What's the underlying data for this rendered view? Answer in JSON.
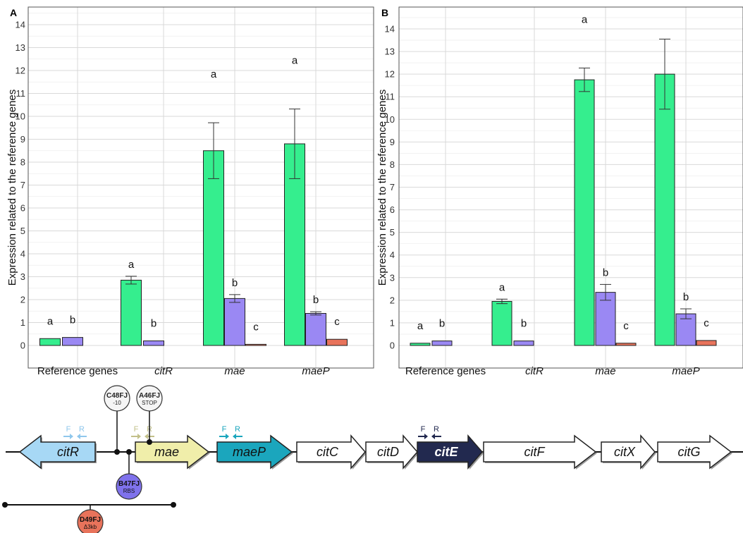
{
  "chart_data": [
    {
      "type": "bar",
      "panel_label": "A",
      "ylabel": "Expression related to the reference genes",
      "ylim": [
        -0.6,
        14.6
      ],
      "yticks": [
        0,
        1,
        2,
        3,
        4,
        5,
        6,
        7,
        8,
        9,
        10,
        11,
        12,
        13,
        14
      ],
      "grid": true,
      "categories": [
        "Reference genes",
        "citR",
        "mae",
        "maeP"
      ],
      "italic_categories": [
        false,
        true,
        true,
        true
      ],
      "groups": [
        {
          "category": "Reference genes",
          "bars": [
            {
              "value": 0.3,
              "err": null,
              "color": "#35ee8e",
              "letter": "a"
            },
            {
              "value": 0.35,
              "err": null,
              "color": "#9a88f3",
              "letter": "b"
            }
          ]
        },
        {
          "category": "citR",
          "bars": [
            {
              "value": 2.85,
              "err": 0.17,
              "color": "#35ee8e",
              "letter": "a"
            },
            {
              "value": 0.2,
              "err": null,
              "color": "#9a88f3",
              "letter": "b"
            }
          ]
        },
        {
          "category": "mae",
          "bars": [
            {
              "value": 8.5,
              "err": 1.22,
              "color": "#35ee8e",
              "letter": "a"
            },
            {
              "value": 2.05,
              "err": 0.17,
              "color": "#9a88f3",
              "letter": "b"
            },
            {
              "value": 0.05,
              "err": null,
              "color": "#e8735b",
              "letter": "c"
            }
          ]
        },
        {
          "category": "maeP",
          "bars": [
            {
              "value": 8.8,
              "err": 1.52,
              "color": "#35ee8e",
              "letter": "a"
            },
            {
              "value": 1.4,
              "err": 0.07,
              "color": "#9a88f3",
              "letter": "b"
            },
            {
              "value": 0.27,
              "err": null,
              "color": "#e8735b",
              "letter": "c"
            }
          ]
        }
      ]
    },
    {
      "type": "bar",
      "panel_label": "B",
      "ylabel": "Expression related to the reference genes",
      "ylim": [
        -0.6,
        14.6
      ],
      "yticks": [
        0,
        1,
        2,
        3,
        4,
        5,
        6,
        7,
        8,
        9,
        10,
        11,
        12,
        13,
        14
      ],
      "grid": true,
      "categories": [
        "Reference genes",
        "citR",
        "mae",
        "maeP"
      ],
      "italic_categories": [
        false,
        true,
        true,
        true
      ],
      "groups": [
        {
          "category": "Reference genes",
          "bars": [
            {
              "value": 0.1,
              "err": null,
              "color": "#35ee8e",
              "letter": "a"
            },
            {
              "value": 0.2,
              "err": null,
              "color": "#9a88f3",
              "letter": "b"
            }
          ]
        },
        {
          "category": "citR",
          "bars": [
            {
              "value": 1.95,
              "err": 0.1,
              "color": "#35ee8e",
              "letter": "a"
            },
            {
              "value": 0.2,
              "err": null,
              "color": "#9a88f3",
              "letter": "b"
            }
          ]
        },
        {
          "category": "mae",
          "bars": [
            {
              "value": 11.75,
              "err": 0.52,
              "color": "#35ee8e",
              "letter": "a"
            },
            {
              "value": 2.35,
              "err": 0.35,
              "color": "#9a88f3",
              "letter": "b"
            },
            {
              "value": 0.1,
              "err": null,
              "color": "#e8735b",
              "letter": "c"
            }
          ]
        },
        {
          "category": "maeP",
          "bars": [
            {
              "value": 12.0,
              "err": 1.55,
              "color": "#35ee8e",
              "letter": "a"
            },
            {
              "value": 1.4,
              "err": 0.22,
              "color": "#9a88f3",
              "letter": "b"
            },
            {
              "value": 0.22,
              "err": null,
              "color": "#e8735b",
              "letter": "c"
            }
          ]
        }
      ]
    }
  ],
  "operon_diagram": {
    "genes": [
      {
        "label": "citR",
        "direction": "left",
        "fill": "#a7d8f5"
      },
      {
        "label": "mae",
        "direction": "right",
        "fill": "#f0eeaa"
      },
      {
        "label": "maeP",
        "direction": "right",
        "fill": "#1ba6bd"
      },
      {
        "label": "citC",
        "direction": "right",
        "fill": "#ffffff"
      },
      {
        "label": "citD",
        "direction": "right",
        "fill": "#ffffff"
      },
      {
        "label": "citE",
        "direction": "right",
        "fill": "#22294f"
      },
      {
        "label": "citF",
        "direction": "right",
        "fill": "#ffffff"
      },
      {
        "label": "citX",
        "direction": "right",
        "fill": "#ffffff"
      },
      {
        "label": "citG",
        "direction": "right",
        "fill": "#ffffff"
      }
    ],
    "primer_pairs": [
      {
        "gene": "citR",
        "forward": "F",
        "reverse": "R",
        "color": "#8fc7ec"
      },
      {
        "gene": "mae",
        "forward": "F",
        "reverse": "R",
        "color": "#c2c08a"
      },
      {
        "gene": "maeP",
        "forward": "F",
        "reverse": "R",
        "color": "#1ba6bd"
      },
      {
        "gene": "citE",
        "forward": "F",
        "reverse": "R",
        "color": "#22294f"
      }
    ],
    "mutations": [
      {
        "name": "C48FJ",
        "detail": "-10",
        "fill": "#f5f5f5",
        "text_color": "#222222"
      },
      {
        "name": "A46FJ",
        "detail": "STOP",
        "fill": "#f5f5f5",
        "text_color": "#222222"
      },
      {
        "name": "B47FJ",
        "detail": "RBS",
        "fill": "#7f72ec",
        "text_color": "#111111"
      },
      {
        "name": "D49FJ",
        "detail": "Δ3kb",
        "fill": "#e8735b",
        "text_color": "#111111"
      }
    ]
  }
}
